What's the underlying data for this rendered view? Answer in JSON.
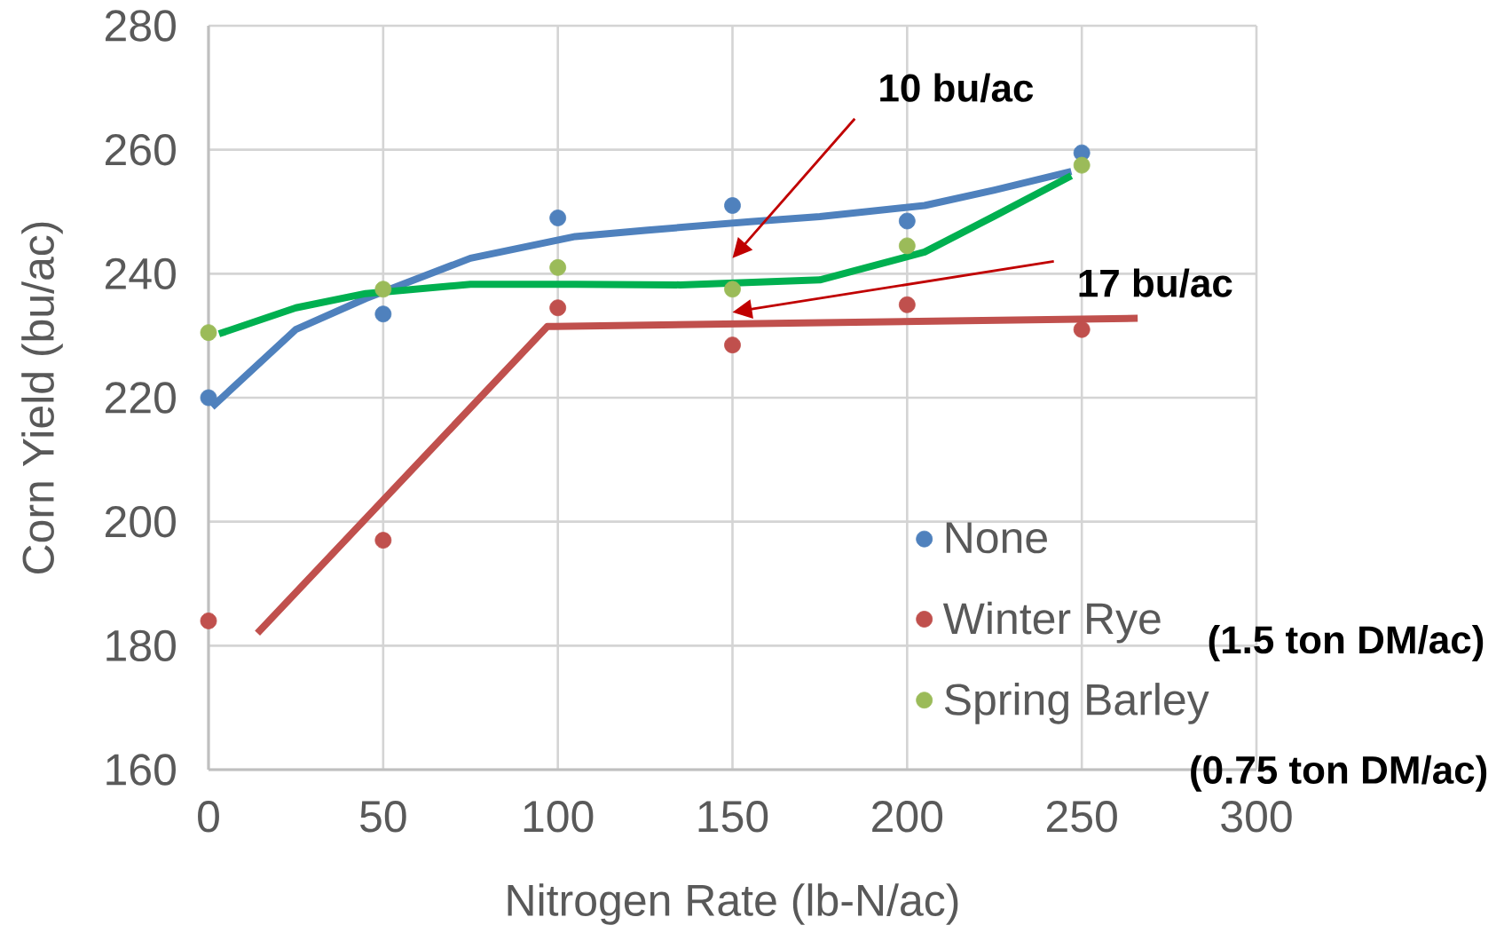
{
  "chart_data": {
    "type": "scatter",
    "xlabel": "Nitrogen Rate (lb-N/ac)",
    "ylabel": "Corn Yield (bu/ac)",
    "xlim": [
      0,
      300
    ],
    "xticks": [
      0,
      50,
      100,
      150,
      200,
      250,
      300
    ],
    "ylim": [
      160,
      280
    ],
    "yticks": [
      160,
      180,
      200,
      220,
      240,
      260,
      280
    ],
    "grid": true,
    "legend": "bottom right",
    "series": [
      {
        "name": "None",
        "marker": "circle",
        "color": "#4f81bd",
        "x": [
          0,
          50,
          100,
          150,
          200,
          250
        ],
        "values": [
          220,
          233.5,
          249,
          251,
          248.5,
          259.5
        ]
      },
      {
        "name": "Winter Rye",
        "marker": "circle",
        "color": "#c0504d",
        "x": [
          0,
          50,
          100,
          150,
          200,
          250
        ],
        "values": [
          184,
          197,
          234.5,
          228.5,
          235,
          231
        ]
      },
      {
        "name": "Spring Barley",
        "marker": "circle",
        "color": "#9bbb59",
        "x": [
          0,
          50,
          100,
          150,
          200,
          250
        ],
        "values": [
          230.5,
          237.5,
          241,
          237.5,
          244.5,
          257.5
        ]
      },
      {
        "type": "line",
        "marker": "none",
        "color": "#4f81bd",
        "x": [
          1,
          25,
          45,
          75,
          105,
          125,
          155,
          175,
          205,
          225,
          247
        ],
        "values": [
          218.5,
          231,
          236,
          242.5,
          246,
          247,
          248.4,
          249.2,
          251,
          253.5,
          256.5
        ]
      },
      {
        "type": "line",
        "marker": "none",
        "color": "#00b050",
        "x": [
          3,
          25,
          45,
          75,
          105,
          135,
          175,
          205,
          225,
          247
        ],
        "values": [
          230.3,
          234.5,
          236.8,
          238.3,
          238.3,
          238.2,
          239,
          243.5,
          249.3,
          255.8
        ]
      },
      {
        "type": "line",
        "marker": "none",
        "color": "#c0504d",
        "x": [
          14,
          97,
          99,
          266
        ],
        "values": [
          182,
          231.5,
          231.5,
          232.8
        ]
      }
    ],
    "annotations": [
      "10 bu/ac",
      "17 bu/ac",
      "(1.5 ton DM/ac)",
      "(0.75 ton DM/ac)"
    ]
  }
}
